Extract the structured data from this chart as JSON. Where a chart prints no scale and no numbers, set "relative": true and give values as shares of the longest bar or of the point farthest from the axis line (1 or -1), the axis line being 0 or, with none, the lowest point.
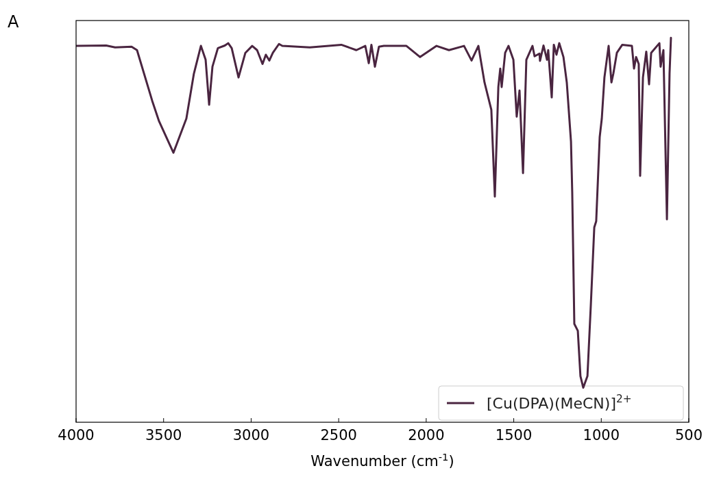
{
  "chart_data": {
    "type": "line",
    "relative": true,
    "xlabel": "Wavenumber (cm$^{-1}$)",
    "xlim": [
      4000,
      500
    ],
    "xticks": [
      4000,
      3500,
      3000,
      2500,
      2000,
      1500,
      1000,
      500
    ],
    "tick_labels": "x",
    "legend": "bottom right",
    "annotations": [
      "A"
    ],
    "series": [
      {
        "name": "[Cu(DPA)(MeCN)]$^{2+}$",
        "color": "#4a2540",
        "x": [
          3996,
          3828,
          3777,
          3683,
          3652,
          3565,
          3526,
          3444,
          3370,
          3327,
          3287,
          3260,
          3240,
          3221,
          3190,
          3150,
          3131,
          3111,
          3072,
          3033,
          2994,
          2966,
          2935,
          2916,
          2896,
          2876,
          2841,
          2822,
          2665,
          2485,
          2399,
          2348,
          2328,
          2313,
          2293,
          2270,
          2242,
          2113,
          2035,
          1941,
          1870,
          1784,
          1741,
          1702,
          1667,
          1628,
          1608,
          1588,
          1577,
          1569,
          1549,
          1530,
          1502,
          1483,
          1467,
          1447,
          1428,
          1393,
          1381,
          1353,
          1350,
          1330,
          1310,
          1303,
          1283,
          1271,
          1256,
          1240,
          1216,
          1197,
          1173,
          1166,
          1154,
          1134,
          1119,
          1103,
          1079,
          1060,
          1040,
          1029,
          1009,
          997,
          982,
          958,
          942,
          931,
          911,
          880,
          825,
          813,
          801,
          786,
          778,
          762,
          743,
          727,
          715,
          668,
          661,
          645,
          625,
          610,
          602
        ],
        "values": [
          0.979,
          0.98,
          0.975,
          0.977,
          0.968,
          0.836,
          0.783,
          0.701,
          0.79,
          0.907,
          0.979,
          0.943,
          0.826,
          0.925,
          0.973,
          0.98,
          0.986,
          0.973,
          0.897,
          0.961,
          0.979,
          0.968,
          0.932,
          0.956,
          0.941,
          0.961,
          0.984,
          0.979,
          0.975,
          0.982,
          0.968,
          0.979,
          0.934,
          0.982,
          0.925,
          0.977,
          0.979,
          0.979,
          0.95,
          0.979,
          0.968,
          0.979,
          0.941,
          0.979,
          0.884,
          0.813,
          0.587,
          0.872,
          0.92,
          0.872,
          0.961,
          0.979,
          0.943,
          0.795,
          0.863,
          0.648,
          0.943,
          0.979,
          0.952,
          0.959,
          0.94,
          0.98,
          0.943,
          0.968,
          0.845,
          0.982,
          0.956,
          0.986,
          0.95,
          0.884,
          0.73,
          0.6,
          0.256,
          0.238,
          0.12,
          0.09,
          0.12,
          0.302,
          0.507,
          0.523,
          0.742,
          0.79,
          0.897,
          0.979,
          0.884,
          0.907,
          0.961,
          0.982,
          0.979,
          0.92,
          0.95,
          0.932,
          0.641,
          0.897,
          0.964,
          0.879,
          0.961,
          0.986,
          0.925,
          0.968,
          0.528,
          0.907,
          1.0
        ]
      }
    ]
  }
}
